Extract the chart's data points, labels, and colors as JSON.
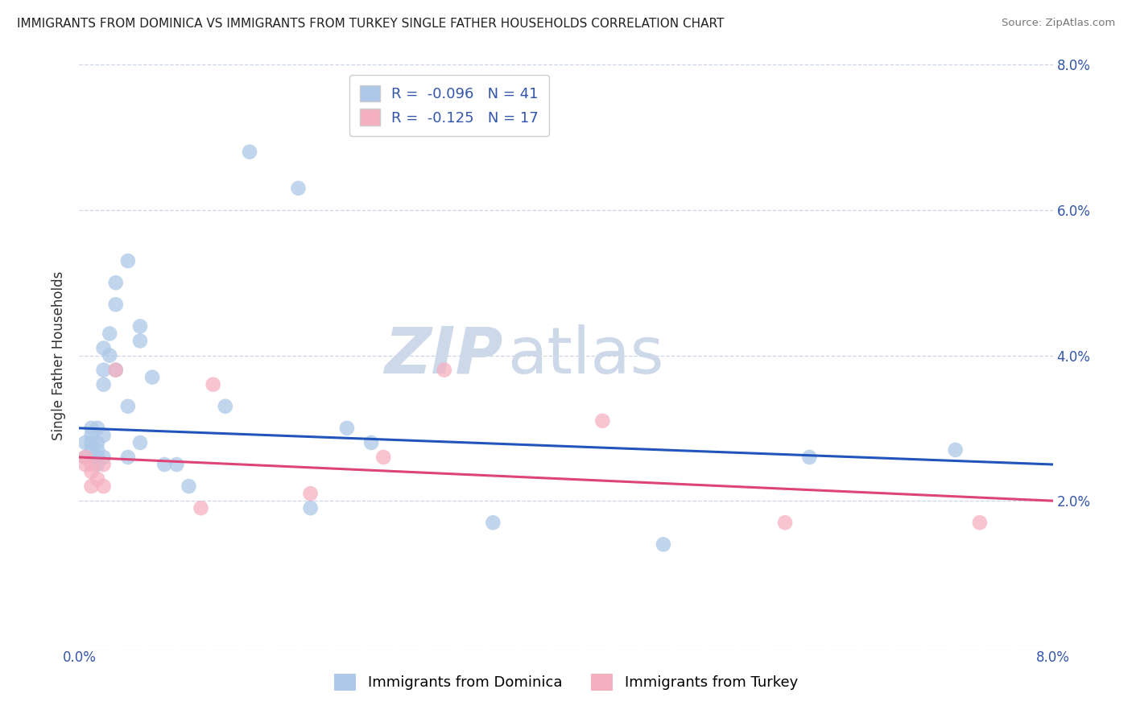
{
  "title": "IMMIGRANTS FROM DOMINICA VS IMMIGRANTS FROM TURKEY SINGLE FATHER HOUSEHOLDS CORRELATION CHART",
  "source": "Source: ZipAtlas.com",
  "ylabel": "Single Father Households",
  "xmin": 0.0,
  "xmax": 0.08,
  "ymin": 0.0,
  "ymax": 0.08,
  "yticks": [
    0.0,
    0.02,
    0.04,
    0.06,
    0.08
  ],
  "ytick_labels": [
    "",
    "2.0%",
    "4.0%",
    "6.0%",
    "8.0%"
  ],
  "xticks": [
    0.0,
    0.01,
    0.02,
    0.03,
    0.04,
    0.05,
    0.06,
    0.07,
    0.08
  ],
  "xtick_labels": [
    "0.0%",
    "",
    "",
    "",
    "",
    "",
    "",
    "",
    "8.0%"
  ],
  "dominica_R": -0.096,
  "dominica_N": 41,
  "turkey_R": -0.125,
  "turkey_N": 17,
  "dominica_color": "#adc8e8",
  "turkey_color": "#f5b0c0",
  "dominica_line_color": "#2255bb",
  "turkey_line_color": "#dd4477",
  "background_color": "#ffffff",
  "grid_color": "#ccd5e8",
  "watermark_color": "#cdd8e8",
  "legend_label_dominica": "Immigrants from Dominica",
  "legend_label_turkey": "Immigrants from Turkey",
  "dominica_x": [
    0.0005,
    0.0005,
    0.001,
    0.001,
    0.001,
    0.001,
    0.0015,
    0.0015,
    0.0015,
    0.0015,
    0.0015,
    0.002,
    0.002,
    0.002,
    0.002,
    0.002,
    0.0025,
    0.0025,
    0.003,
    0.003,
    0.003,
    0.004,
    0.004,
    0.004,
    0.005,
    0.005,
    0.005,
    0.006,
    0.007,
    0.008,
    0.009,
    0.012,
    0.014,
    0.018,
    0.019,
    0.022,
    0.024,
    0.034,
    0.048,
    0.06,
    0.072
  ],
  "dominica_y": [
    0.028,
    0.026,
    0.03,
    0.029,
    0.028,
    0.027,
    0.03,
    0.028,
    0.027,
    0.026,
    0.025,
    0.041,
    0.038,
    0.036,
    0.029,
    0.026,
    0.043,
    0.04,
    0.05,
    0.047,
    0.038,
    0.053,
    0.033,
    0.026,
    0.044,
    0.042,
    0.028,
    0.037,
    0.025,
    0.025,
    0.022,
    0.033,
    0.068,
    0.063,
    0.019,
    0.03,
    0.028,
    0.017,
    0.014,
    0.026,
    0.027
  ],
  "turkey_x": [
    0.0005,
    0.0005,
    0.001,
    0.001,
    0.001,
    0.0015,
    0.002,
    0.002,
    0.003,
    0.01,
    0.011,
    0.019,
    0.025,
    0.03,
    0.043,
    0.058,
    0.074
  ],
  "turkey_y": [
    0.026,
    0.025,
    0.025,
    0.024,
    0.022,
    0.023,
    0.025,
    0.022,
    0.038,
    0.019,
    0.036,
    0.021,
    0.026,
    0.038,
    0.031,
    0.017,
    0.017
  ],
  "blue_line_x0": 0.0,
  "blue_line_y0": 0.03,
  "blue_line_x1": 0.08,
  "blue_line_y1": 0.025,
  "pink_line_x0": 0.0,
  "pink_line_y0": 0.026,
  "pink_line_x1": 0.08,
  "pink_line_y1": 0.02
}
